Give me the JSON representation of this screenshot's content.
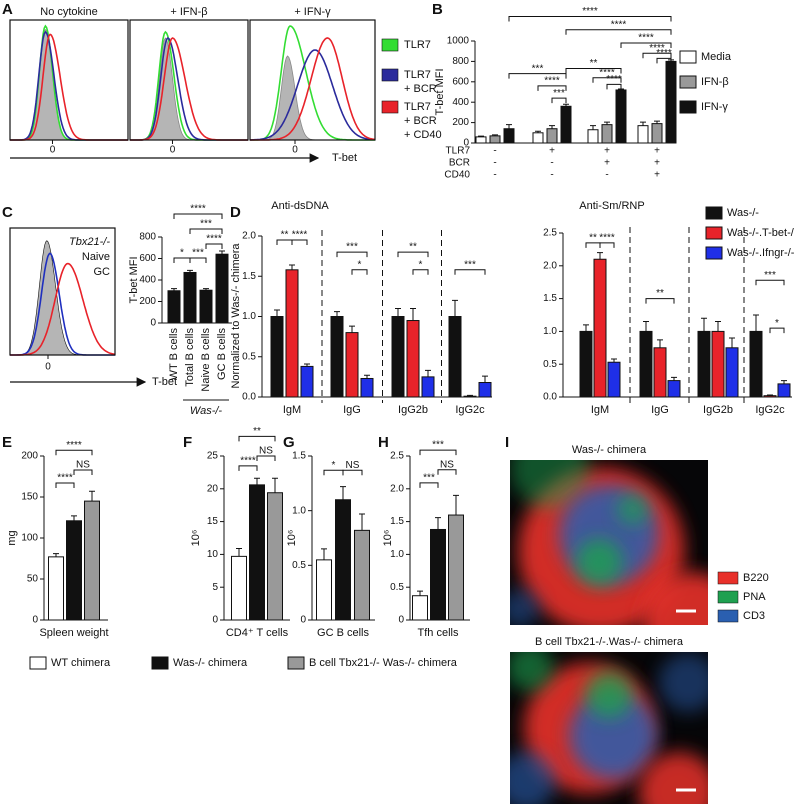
{
  "panel_labels": [
    "A",
    "B",
    "C",
    "D",
    "E",
    "F",
    "G",
    "H",
    "I"
  ],
  "flow_a": {
    "titles": [
      "No cytokine",
      "+ IFN-β",
      "+ IFN-γ"
    ],
    "x_tick": "0",
    "x_label": "T-bet",
    "fill": "#b5b5b5",
    "legend": [
      {
        "lines": [
          "TLR7"
        ],
        "color": "#33dd33"
      },
      {
        "lines": [
          "TLR7",
          "+ BCR"
        ],
        "color": "#2b2b9c"
      },
      {
        "lines": [
          "TLR7",
          "+ BCR",
          "+ CD40"
        ],
        "color": "#e8232a"
      }
    ]
  },
  "flow_c": {
    "x_tick": "0",
    "x_label": "T-bet",
    "fill": "#b5b5b5",
    "legend": [
      {
        "name": "Tbx21-/-",
        "color": "#111111"
      },
      {
        "name": "Naive",
        "color": "#1f2fbf"
      },
      {
        "name": "GC",
        "color": "#e8232a"
      }
    ]
  },
  "imaging_i": {
    "titles": [
      "Was-/- chimera",
      "B cell Tbx21-/-.Was-/- chimera"
    ],
    "legend": [
      {
        "name": "B220",
        "color": "#e8302a"
      },
      {
        "name": "PNA",
        "color": "#1fa050"
      },
      {
        "name": "CD3",
        "color": "#2a5fb0"
      }
    ]
  },
  "shared_legend_note": null,
  "chart_data": [
    {
      "type": "bar",
      "y_label": "T-bet MFI",
      "categories": [
        null,
        null,
        null,
        null
      ],
      "series": [
        {
          "name": "Media",
          "color": "#ffffff",
          "values": [
            60,
            100,
            130,
            170
          ],
          "errors": [
            8,
            15,
            40,
            35
          ]
        },
        {
          "name": "IFN-β",
          "color": "#999999",
          "values": [
            70,
            140,
            180,
            190
          ],
          "errors": [
            10,
            30,
            25,
            25
          ]
        },
        {
          "name": "IFN-γ",
          "color": "#111111",
          "values": [
            140,
            360,
            520,
            800
          ],
          "errors": [
            40,
            20,
            10,
            15
          ]
        }
      ],
      "ylim": [
        0,
        1000
      ],
      "yticks": [
        0,
        200,
        400,
        600,
        800,
        1000
      ],
      "conditions": [
        {
          "label": "TLR7",
          "marks": [
            "-",
            "+",
            "+",
            "+"
          ]
        },
        {
          "label": "BCR",
          "marks": [
            "-",
            "-",
            "+",
            "+"
          ]
        },
        {
          "label": "CD40",
          "marks": [
            "-",
            "-",
            "-",
            "+"
          ]
        }
      ],
      "annotations": [
        "****",
        "****",
        "****",
        "****",
        "****",
        "***",
        "****",
        "***",
        "**",
        "****",
        "****"
      ]
    },
    {
      "type": "bar",
      "y_label": "T-bet MFI",
      "categories": [
        "WT B cells",
        "Total B cells",
        "Naive B cells",
        "GC B cells"
      ],
      "series": [
        {
          "color": "#111111",
          "values": [
            300,
            470,
            305,
            640
          ],
          "errors": [
            20,
            20,
            15,
            30
          ]
        }
      ],
      "ylim": [
        0,
        800
      ],
      "yticks": [
        0,
        200,
        400,
        600,
        800
      ],
      "group_label": "Was-/-",
      "annotations": [
        "****",
        "***",
        "****",
        "*",
        "***"
      ]
    },
    {
      "type": "bar",
      "title": "Anti-dsDNA",
      "y_label": "Normalized to Was-/- chimera",
      "categories": [
        "IgM",
        "IgG",
        "IgG2b",
        "IgG2c"
      ],
      "series": [
        {
          "name": "Was-/-",
          "color": "#111111",
          "values": [
            1.0,
            1.0,
            1.0,
            1.0
          ],
          "errors": [
            0.08,
            0.06,
            0.1,
            0.2
          ]
        },
        {
          "name": "Was-/-.T-bet-/-",
          "color": "#e8232a",
          "values": [
            1.58,
            0.8,
            0.95,
            0.01
          ],
          "errors": [
            0.06,
            0.08,
            0.15,
            0.01
          ]
        },
        {
          "name": "Was-/-.Ifngr-/-",
          "color": "#1f2fe8",
          "values": [
            0.38,
            0.23,
            0.25,
            0.18
          ],
          "errors": [
            0.03,
            0.04,
            0.08,
            0.08
          ]
        }
      ],
      "ylim": [
        0,
        2
      ],
      "yticks": [
        {
          "value": 0,
          "label": "0.0"
        },
        0.5,
        {
          "value": 1,
          "label": "1.0"
        },
        1.5,
        {
          "value": 2,
          "label": "2.0"
        }
      ],
      "annotations": [
        "**",
        "****",
        "***",
        "*",
        "**",
        "*",
        "***"
      ]
    },
    {
      "type": "bar",
      "title": "Anti-Sm/RNP",
      "categories": [
        "IgM",
        "IgG",
        "IgG2b",
        "IgG2c"
      ],
      "series": [
        {
          "color": "#111111",
          "values": [
            1.0,
            1.0,
            1.0,
            1.0
          ],
          "errors": [
            0.1,
            0.15,
            0.2,
            0.25
          ]
        },
        {
          "color": "#e8232a",
          "values": [
            2.1,
            0.75,
            1.0,
            0.02
          ],
          "errors": [
            0.1,
            0.12,
            0.15,
            0.01
          ]
        },
        {
          "color": "#1f2fe8",
          "values": [
            0.53,
            0.25,
            0.75,
            0.2
          ],
          "errors": [
            0.05,
            0.05,
            0.15,
            0.05
          ]
        }
      ],
      "ylim": [
        0,
        2.5
      ],
      "yticks": [
        {
          "value": 0,
          "label": "0.0"
        },
        0.5,
        {
          "value": 1,
          "label": "1.0"
        },
        1.5,
        {
          "value": 2,
          "label": "2.0"
        },
        2.5
      ],
      "annotations": [
        "**",
        "****",
        "**",
        "***",
        "*"
      ]
    },
    {
      "type": "bar",
      "y_label": "mg",
      "categories": [
        "Spleen weight"
      ],
      "series": [
        {
          "name": "WT chimera",
          "color": "#ffffff",
          "values": [
            77
          ],
          "errors": [
            4
          ]
        },
        {
          "name": "Was-/- chimera",
          "color": "#111111",
          "values": [
            121
          ],
          "errors": [
            6
          ]
        },
        {
          "name": "B cell Tbx21-/- Was-/- chimera",
          "color": "#999999",
          "values": [
            145
          ],
          "errors": [
            12
          ]
        }
      ],
      "ylim": [
        0,
        200
      ],
      "yticks": [
        0,
        50,
        100,
        150,
        200
      ],
      "annotations": [
        "****",
        "NS",
        "****"
      ]
    },
    {
      "type": "bar",
      "y_label": "10⁶",
      "categories": [
        "CD4⁺ T cells"
      ],
      "series": [
        {
          "color": "#ffffff",
          "values": [
            9.7
          ],
          "errors": [
            1.2
          ]
        },
        {
          "color": "#111111",
          "values": [
            20.6
          ],
          "errors": [
            1.0
          ]
        },
        {
          "color": "#999999",
          "values": [
            19.4
          ],
          "errors": [
            2.2
          ]
        }
      ],
      "ylim": [
        0,
        25
      ],
      "yticks": [
        0,
        5,
        10,
        15,
        20,
        25
      ],
      "annotations": [
        "**",
        "****",
        "NS"
      ]
    },
    {
      "type": "bar",
      "y_label": "10⁶",
      "categories": [
        "GC B cells"
      ],
      "series": [
        {
          "color": "#ffffff",
          "values": [
            0.55
          ],
          "errors": [
            0.1
          ]
        },
        {
          "color": "#111111",
          "values": [
            1.1
          ],
          "errors": [
            0.12
          ]
        },
        {
          "color": "#999999",
          "values": [
            0.82
          ],
          "errors": [
            0.15
          ]
        }
      ],
      "ylim": [
        0,
        1.5
      ],
      "yticks": [
        0,
        0.5,
        {
          "value": 1,
          "label": "1.0"
        },
        1.5
      ],
      "annotations": [
        "*",
        "NS"
      ]
    },
    {
      "type": "bar",
      "y_label": "10⁶",
      "categories": [
        "Tfh cells"
      ],
      "series": [
        {
          "color": "#ffffff",
          "values": [
            0.37
          ],
          "errors": [
            0.07
          ]
        },
        {
          "color": "#111111",
          "values": [
            1.38
          ],
          "errors": [
            0.18
          ]
        },
        {
          "color": "#999999",
          "values": [
            1.6
          ],
          "errors": [
            0.3
          ]
        }
      ],
      "ylim": [
        0,
        2.5
      ],
      "yticks": [
        0,
        0.5,
        {
          "value": 1,
          "label": "1.0"
        },
        1.5,
        {
          "value": 2,
          "label": "2.0"
        },
        2.5
      ],
      "annotations": [
        "***",
        "***",
        "NS"
      ]
    }
  ]
}
